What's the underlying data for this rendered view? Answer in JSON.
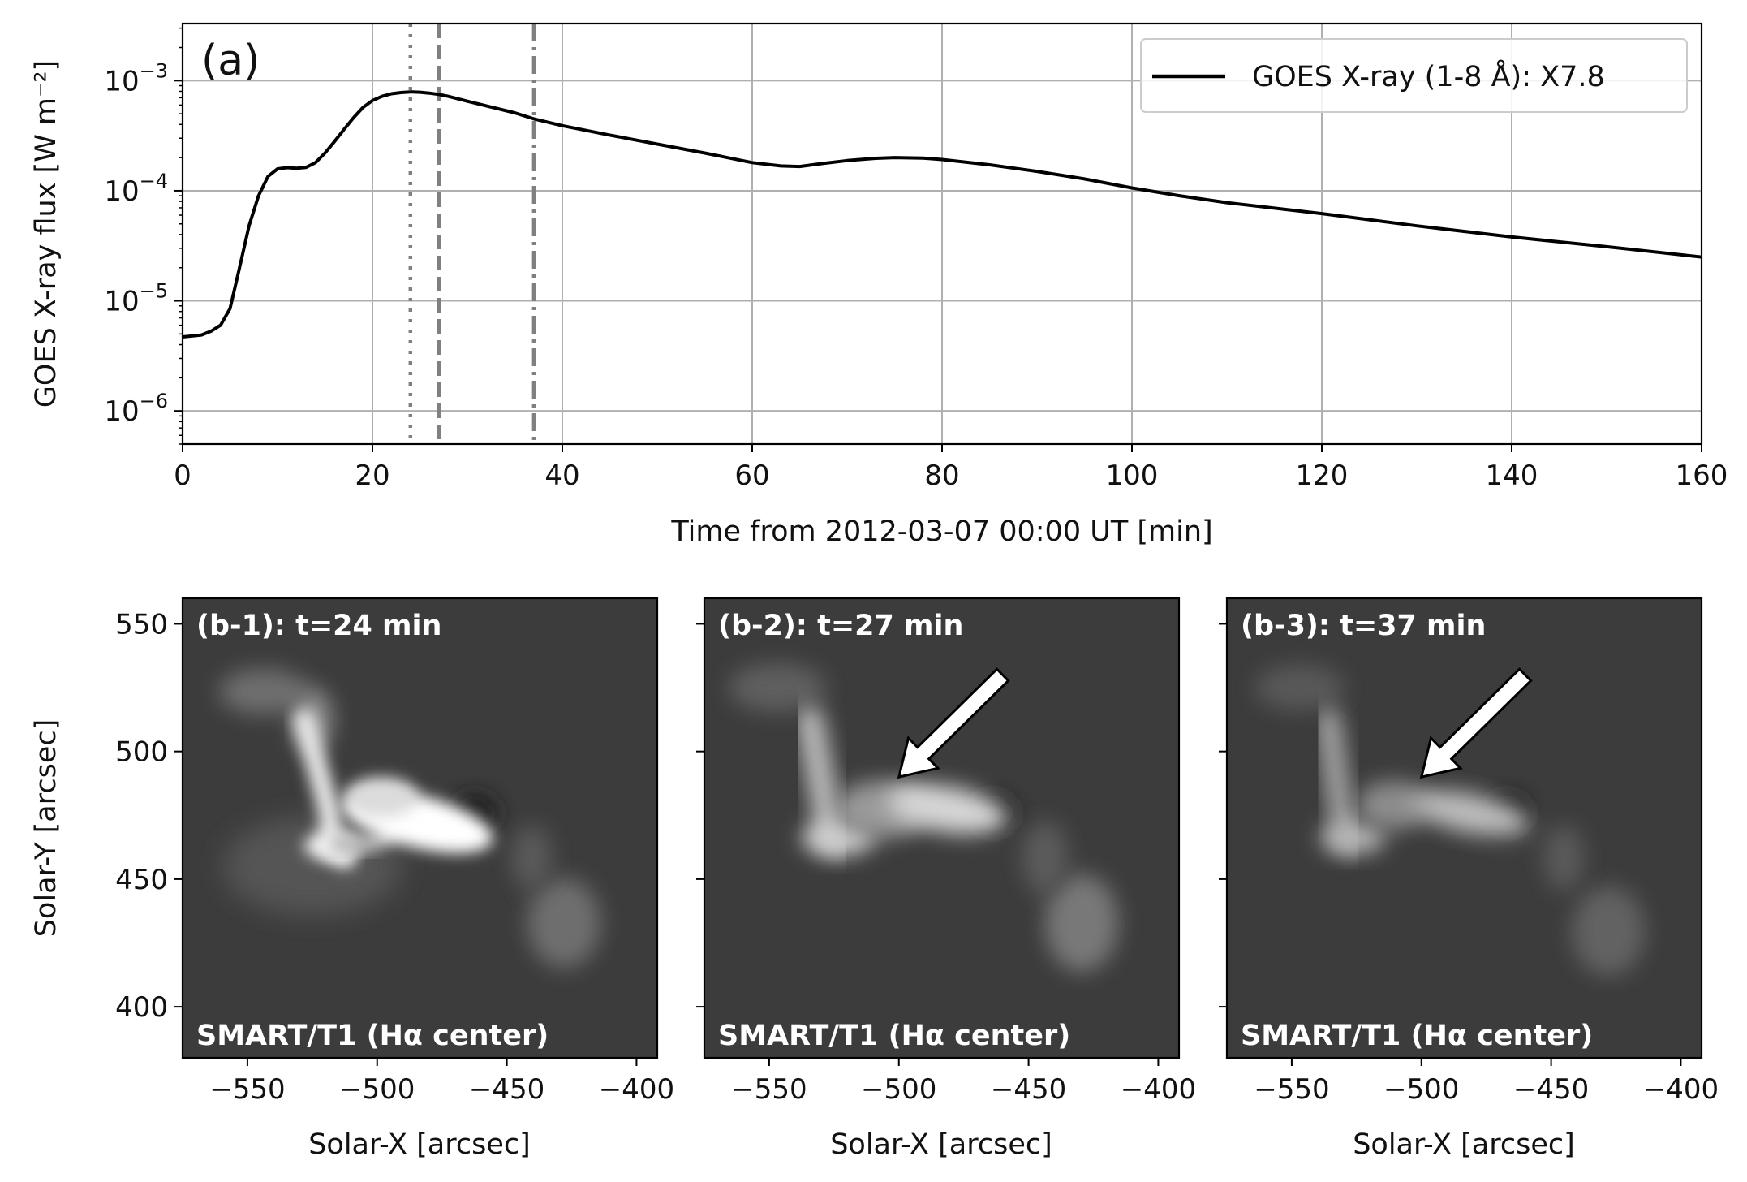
{
  "chart_data": [
    {
      "type": "line",
      "panel_tag": "(a)",
      "xlabel": "Time from 2012-03-07 00:00 UT [min]",
      "ylabel": "GOES X-ray flux [W m⁻²]",
      "xlim": [
        0,
        160
      ],
      "ylim": [
        5e-07,
        0.0033
      ],
      "yscale": "log",
      "grid": true,
      "legend_position": "top-right",
      "x_ticks": [
        "0",
        "20",
        "40",
        "60",
        "80",
        "100",
        "120",
        "140",
        "160"
      ],
      "y_ticks": [
        {
          "value": 1e-06,
          "base": "10",
          "exp": "−6"
        },
        {
          "value": 1e-05,
          "base": "10",
          "exp": "−5"
        },
        {
          "value": 0.0001,
          "base": "10",
          "exp": "−4"
        },
        {
          "value": 0.001,
          "base": "10",
          "exp": "−3"
        }
      ],
      "series": [
        {
          "name": "GOES X-ray (1-8 Å): X7.8",
          "color": "#000000",
          "x": [
            0,
            2,
            3,
            4,
            5,
            6,
            7,
            8,
            9,
            10,
            11,
            12,
            13,
            14,
            15,
            16,
            17,
            18,
            19,
            20,
            21,
            22,
            23,
            24,
            25,
            26,
            27,
            28,
            30,
            32,
            35,
            37,
            40,
            45,
            50,
            55,
            60,
            63,
            65,
            67,
            70,
            73,
            75,
            78,
            80,
            85,
            90,
            95,
            100,
            105,
            110,
            120,
            130,
            140,
            150,
            160
          ],
          "y": [
            4.7e-06,
            4.9e-06,
            5.3e-06,
            6e-06,
            8.5e-06,
            2e-05,
            4.8e-05,
            9e-05,
            0.000135,
            0.000158,
            0.000162,
            0.00016,
            0.000163,
            0.00018,
            0.00022,
            0.00028,
            0.00036,
            0.00046,
            0.00057,
            0.00066,
            0.00072,
            0.00076,
            0.00078,
            0.00079,
            0.000785,
            0.00077,
            0.00075,
            0.00072,
            0.00065,
            0.00059,
            0.00051,
            0.00045,
            0.00039,
            0.00032,
            0.000265,
            0.00022,
            0.00018,
            0.000168,
            0.000166,
            0.000175,
            0.000188,
            0.000197,
            0.0002,
            0.000198,
            0.000192,
            0.000172,
            0.00015,
            0.000128,
            0.000106,
            9e-05,
            7.8e-05,
            6.2e-05,
            4.8e-05,
            3.8e-05,
            3.1e-05,
            2.5e-05
          ]
        }
      ],
      "vertical_lines": [
        {
          "x": 24,
          "style": "dotted",
          "color": "#808080"
        },
        {
          "x": 27,
          "style": "dashed",
          "color": "#808080"
        },
        {
          "x": 37,
          "style": "dashdot",
          "color": "#808080"
        }
      ]
    },
    {
      "type": "heatmap",
      "title": "(b-1): t=24 min",
      "caption": "SMART/T1 (Hα center)",
      "xlabel": "Solar-X [arcsec]",
      "ylabel": "Solar-Y [arcsec]",
      "xlim": [
        -575,
        -392
      ],
      "ylim": [
        380,
        560
      ],
      "x_ticks": [
        "−550",
        "−500",
        "−450",
        "−400"
      ],
      "y_ticks": [
        "550",
        "500",
        "450",
        "400"
      ],
      "colormap": "gray",
      "arrow": false
    },
    {
      "type": "heatmap",
      "title": "(b-2): t=27 min",
      "caption": "SMART/T1 (Hα center)",
      "xlabel": "Solar-X [arcsec]",
      "xlim": [
        -575,
        -392
      ],
      "ylim": [
        380,
        560
      ],
      "x_ticks": [
        "−550",
        "−500",
        "−450",
        "−400"
      ],
      "colormap": "gray",
      "arrow": true,
      "arrow_tip": [
        -500,
        490
      ],
      "arrow_tail": [
        -460,
        530
      ]
    },
    {
      "type": "heatmap",
      "title": "(b-3): t=37 min",
      "caption": "SMART/T1 (Hα center)",
      "xlabel": "Solar-X [arcsec]",
      "xlim": [
        -575,
        -392
      ],
      "ylim": [
        380,
        560
      ],
      "x_ticks": [
        "−550",
        "−500",
        "−450",
        "−400"
      ],
      "colormap": "gray",
      "arrow": true,
      "arrow_tip": [
        -500,
        490
      ],
      "arrow_tail": [
        -460,
        530
      ]
    }
  ]
}
